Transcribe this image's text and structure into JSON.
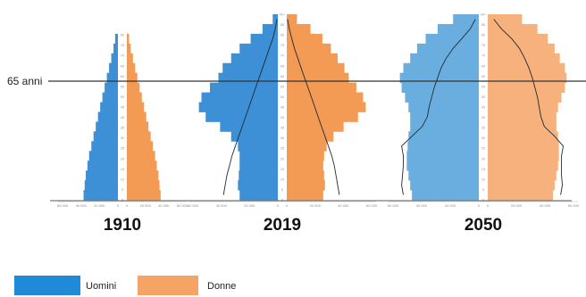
{
  "chart_data": {
    "type": "population-pyramid",
    "reference_line": {
      "age": 65,
      "label": "65 anni"
    },
    "age_ticks": [
      "90+",
      "85",
      "80",
      "75",
      "70",
      "65",
      "60",
      "55",
      "50",
      "45",
      "40",
      "35",
      "30",
      "25",
      "20",
      "15",
      "10",
      "5",
      "0"
    ],
    "x_ticks": [
      "60 000",
      "40 000",
      "20 000",
      "0",
      "0",
      "20 000",
      "40 000",
      "60 000"
    ],
    "pyramids": [
      {
        "year": "1910",
        "age_groups": [
          "0-4",
          "5-9",
          "10-14",
          "15-19",
          "20-24",
          "25-29",
          "30-34",
          "35-39",
          "40-44",
          "45-49",
          "50-54",
          "55-59",
          "60-64",
          "65-69",
          "70-74",
          "75-79",
          "80-84",
          "85-89",
          "90+"
        ],
        "men": [
          62,
          60,
          58,
          55,
          52,
          48,
          44,
          40,
          36,
          32,
          28,
          24,
          20,
          16,
          12,
          8,
          5,
          2,
          1
        ],
        "women": [
          61,
          59,
          57,
          54,
          51,
          47,
          43,
          39,
          35,
          31,
          27,
          23,
          19,
          15,
          11,
          7,
          4,
          2,
          1
        ],
        "ref_men": null,
        "ref_women": null
      },
      {
        "year": "2019",
        "age_groups": [
          "0-4",
          "5-9",
          "10-14",
          "15-19",
          "20-24",
          "25-29",
          "30-34",
          "35-39",
          "40-44",
          "45-49",
          "50-54",
          "55-59",
          "60-64",
          "65-69",
          "70-74",
          "75-79",
          "80-84",
          "85-89",
          "90+"
        ],
        "men": [
          45,
          47,
          46,
          45,
          45,
          47,
          55,
          68,
          85,
          93,
          90,
          80,
          70,
          65,
          55,
          45,
          32,
          18,
          6
        ],
        "women": [
          43,
          45,
          44,
          43,
          44,
          47,
          55,
          67,
          84,
          93,
          90,
          82,
          73,
          68,
          60,
          52,
          42,
          28,
          12
        ],
        "ref_men": [
          64,
          62,
          60,
          57,
          54,
          50,
          46,
          42,
          38,
          34,
          30,
          26,
          22,
          18,
          14,
          10,
          6,
          3,
          1
        ],
        "ref_women": [
          62,
          60,
          58,
          56,
          53,
          49,
          45,
          41,
          37,
          33,
          29,
          25,
          21,
          17,
          13,
          9,
          6,
          3,
          1
        ]
      },
      {
        "year": "2050",
        "age_groups": [
          "0-4",
          "5-9",
          "10-14",
          "15-19",
          "20-24",
          "25-29",
          "30-34",
          "35-39",
          "40-44",
          "45-49",
          "50-54",
          "55-59",
          "60-64",
          "65-69",
          "70-74",
          "75-79",
          "80-84",
          "85-89",
          "90+"
        ],
        "men": [
          78,
          80,
          82,
          84,
          84,
          83,
          82,
          80,
          80,
          82,
          86,
          90,
          92,
          88,
          80,
          72,
          62,
          48,
          30
        ],
        "women": [
          76,
          78,
          80,
          82,
          83,
          83,
          82,
          80,
          80,
          82,
          86,
          90,
          92,
          90,
          84,
          78,
          70,
          58,
          40
        ],
        "ref_men": [
          88,
          90,
          89,
          88,
          88,
          90,
          78,
          66,
          60,
          58,
          55,
          52,
          48,
          44,
          38,
          30,
          20,
          10,
          4
        ],
        "ref_women": [
          85,
          87,
          86,
          86,
          86,
          88,
          78,
          66,
          62,
          60,
          58,
          55,
          52,
          48,
          43,
          37,
          28,
          16,
          7
        ]
      }
    ],
    "legend": [
      {
        "label": "Uomini",
        "color": "#1f8ad8"
      },
      {
        "label": "Donne",
        "color": "#f5a466"
      }
    ]
  },
  "colors": {
    "men": "#3d8fd6",
    "women": "#f39a55",
    "men_2050": "#6aaee0",
    "women_2050": "#f7b17c",
    "reference_line": "#333333",
    "overlay_line": "#1f2a33"
  }
}
